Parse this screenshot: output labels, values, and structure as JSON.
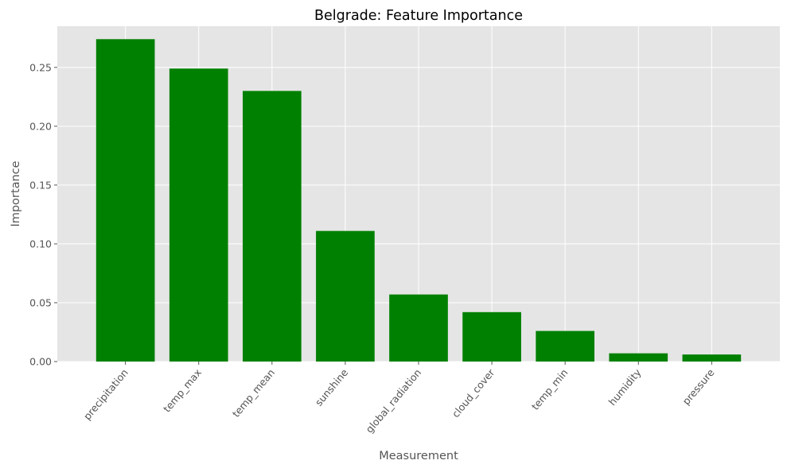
{
  "chart_data": {
    "type": "bar",
    "title": "Belgrade: Feature Importance",
    "xlabel": "Measurement",
    "ylabel": "Importance",
    "categories": [
      "precipitation",
      "temp_max",
      "temp_mean",
      "sunshine",
      "global_radiation",
      "cloud_cover",
      "temp_min",
      "humidity",
      "pressure"
    ],
    "values": [
      0.274,
      0.249,
      0.23,
      0.111,
      0.057,
      0.042,
      0.026,
      0.007,
      0.006
    ],
    "ylim": [
      0,
      0.285
    ],
    "yticks": [
      0.0,
      0.05,
      0.1,
      0.15,
      0.2,
      0.25
    ],
    "ytick_labels": [
      "0.00",
      "0.05",
      "0.10",
      "0.15",
      "0.20",
      "0.25"
    ],
    "grid": true,
    "bar_color": "#008000",
    "plot_background": "#e5e5e5",
    "grid_color": "#ffffff",
    "tick_label_color": "#555555",
    "title_color": "#000000"
  }
}
